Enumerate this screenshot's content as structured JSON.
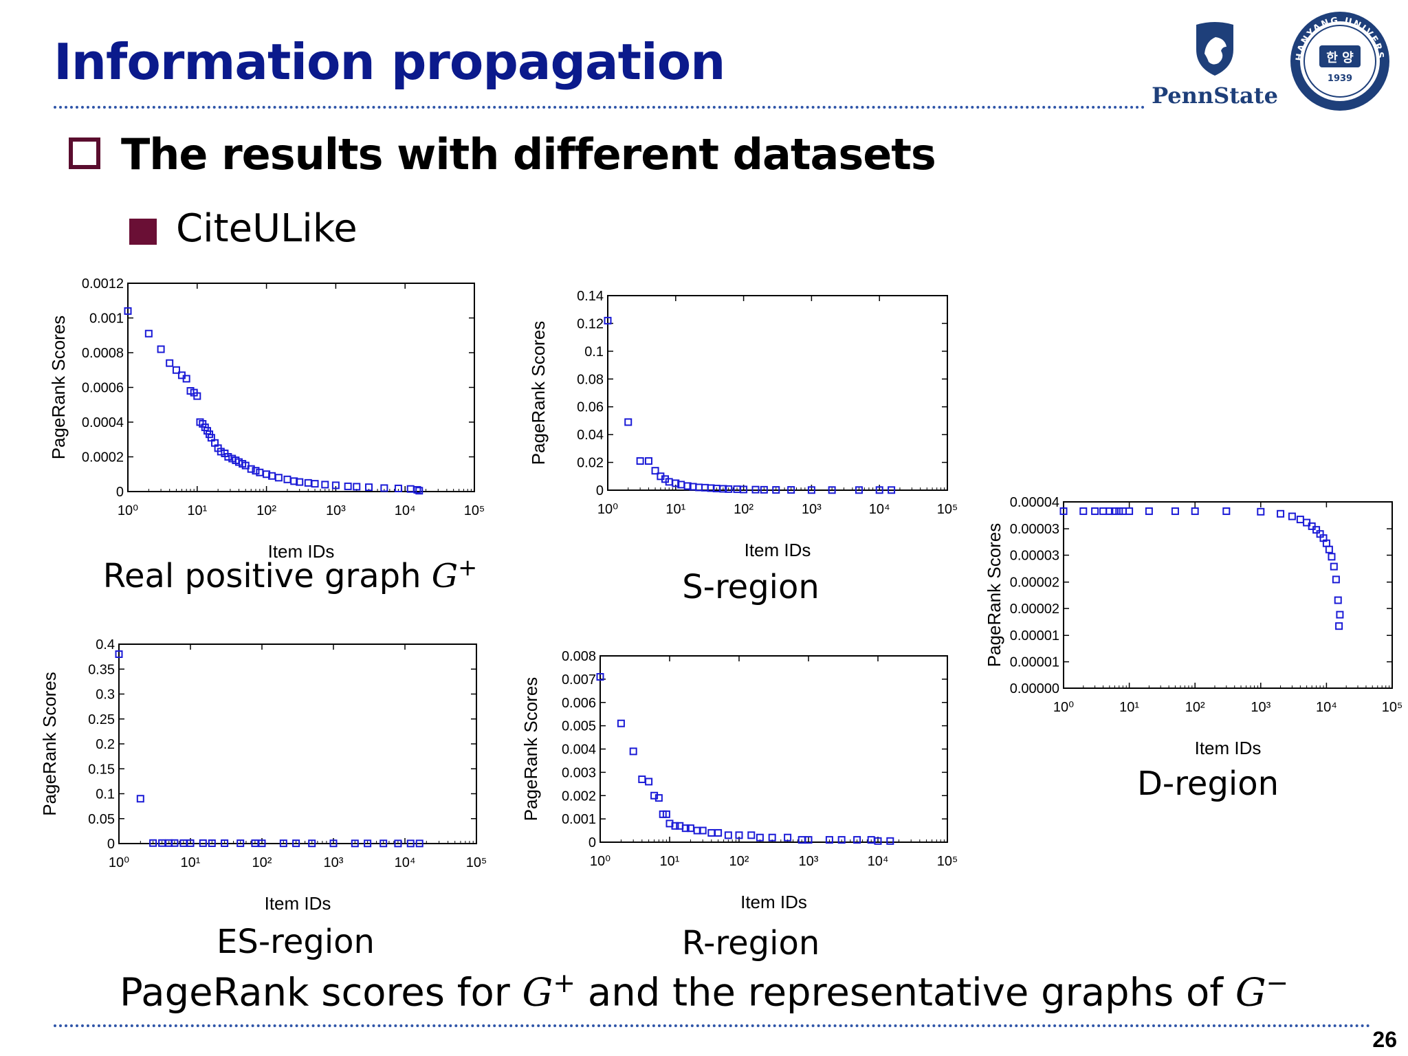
{
  "slide": {
    "title": "Information propagation",
    "bullet_level1": "The results with different datasets",
    "bullet_level2": "CiteULike",
    "bottom_caption_part1": "PageRank scores for ",
    "bottom_caption_math1": "G",
    "bottom_caption_sup1": "+",
    "bottom_caption_part2": " and the representative graphs of ",
    "bottom_caption_math2": "G",
    "bottom_caption_sup2": "−",
    "page_number": "26",
    "logos": {
      "pennstate_text": "PennState",
      "hanyang_ring_text": "HANYANG UNIVERSITY",
      "hanyang_center_text": "한 양",
      "hanyang_year": "1939"
    },
    "colors": {
      "title": "#0b1a8c",
      "bullet": "#6a0f35",
      "marker": "#1a1ad6",
      "divider": "#2f55a8"
    }
  },
  "chart_data": [
    {
      "type": "scatter",
      "caption": "Real positive graph ",
      "caption_math": "G",
      "caption_sup": "+",
      "xlabel": "Item IDs",
      "ylabel": "PageRank Scores",
      "xscale": "log",
      "xlim": [
        1,
        100000
      ],
      "xticks": [
        1,
        10,
        100,
        1000,
        10000,
        100000
      ],
      "ylim": [
        0,
        0.0012
      ],
      "yticks": [
        0,
        0.0002,
        0.0004,
        0.0006,
        0.0008,
        0.001,
        0.0012
      ],
      "ytick_labels": [
        "0",
        "0.0002",
        "0.0004",
        "0.0006",
        "0.0008",
        "0.001",
        "0.0012"
      ],
      "x": [
        1,
        2,
        3,
        4,
        5,
        6,
        7,
        8,
        9,
        10,
        11,
        12,
        13,
        14,
        15,
        16,
        18,
        20,
        22,
        25,
        28,
        32,
        36,
        40,
        45,
        50,
        60,
        70,
        80,
        100,
        120,
        150,
        200,
        250,
        300,
        400,
        500,
        700,
        1000,
        1500,
        2000,
        3000,
        5000,
        8000,
        12000,
        15000,
        16000
      ],
      "y": [
        0.00104,
        0.00091,
        0.00082,
        0.00074,
        0.0007,
        0.00067,
        0.00065,
        0.00058,
        0.00057,
        0.00055,
        0.0004,
        0.00039,
        0.00037,
        0.00035,
        0.00033,
        0.00031,
        0.00028,
        0.00025,
        0.00023,
        0.00022,
        0.0002,
        0.00019,
        0.00018,
        0.00017,
        0.00016,
        0.00015,
        0.00013,
        0.00012,
        0.00011,
        0.0001,
        9e-05,
        8e-05,
        7e-05,
        6e-05,
        5.5e-05,
        5e-05,
        4.5e-05,
        4e-05,
        3.6e-05,
        3e-05,
        2.8e-05,
        2.5e-05,
        2e-05,
        1.8e-05,
        1.5e-05,
        1e-05,
        5e-06
      ]
    },
    {
      "type": "scatter",
      "caption": "S-region",
      "xlabel": "Item IDs",
      "ylabel": "PageRank Scores",
      "xscale": "log",
      "xlim": [
        1,
        100000
      ],
      "xticks": [
        1,
        10,
        100,
        1000,
        10000,
        100000
      ],
      "ylim": [
        0,
        0.14
      ],
      "yticks": [
        0,
        0.02,
        0.04,
        0.06,
        0.08,
        0.1,
        0.12,
        0.14
      ],
      "ytick_labels": [
        "0",
        "0.02",
        "0.04",
        "0.06",
        "0.08",
        "0.1",
        "0.12",
        "0.14"
      ],
      "x": [
        1,
        2,
        3,
        4,
        5,
        6,
        7,
        8,
        10,
        12,
        15,
        18,
        22,
        27,
        33,
        40,
        50,
        60,
        80,
        100,
        150,
        200,
        300,
        500,
        1000,
        2000,
        5000,
        10000,
        15000
      ],
      "y": [
        0.122,
        0.049,
        0.021,
        0.021,
        0.014,
        0.01,
        0.008,
        0.006,
        0.005,
        0.004,
        0.003,
        0.0025,
        0.002,
        0.0018,
        0.0015,
        0.0012,
        0.001,
        0.0008,
        0.0007,
        0.0005,
        0.0004,
        0.0003,
        0.0002,
        0.0002,
        0.0001,
        0.0001,
        0.0001,
        0.0001,
        0.0001
      ]
    },
    {
      "type": "scatter",
      "caption": "ES-region",
      "xlabel": "Item IDs",
      "ylabel": "PageRank Scores",
      "xscale": "log",
      "xlim": [
        1,
        100000
      ],
      "xticks": [
        1,
        10,
        100,
        1000,
        10000,
        100000
      ],
      "ylim": [
        0,
        0.4
      ],
      "yticks": [
        0,
        0.05,
        0.1,
        0.15,
        0.2,
        0.25,
        0.3,
        0.35,
        0.4
      ],
      "ytick_labels": [
        "0",
        "0.05",
        "0.1",
        "0.15",
        "0.2",
        "0.25",
        "0.3",
        "0.35",
        "0.4"
      ],
      "x": [
        1,
        2,
        3,
        4,
        5,
        6,
        8,
        10,
        15,
        20,
        30,
        50,
        80,
        100,
        200,
        300,
        500,
        1000,
        2000,
        3000,
        5000,
        8000,
        12000,
        16000
      ],
      "y": [
        0.38,
        0.09,
        0.001,
        0.001,
        0.001,
        0.001,
        0.0008,
        0.0008,
        0.0008,
        0.0007,
        0.0007,
        0.0006,
        0.0006,
        0.0005,
        0.0005,
        0.0005,
        0.0004,
        0.0004,
        0.0003,
        0.0003,
        0.0003,
        0.0002,
        0.0002,
        0.0002
      ]
    },
    {
      "type": "scatter",
      "caption": "R-region",
      "xlabel": "Item IDs",
      "ylabel": "PageRank Scores",
      "xscale": "log",
      "xlim": [
        1,
        100000
      ],
      "xticks": [
        1,
        10,
        100,
        1000,
        10000,
        100000
      ],
      "ylim": [
        0,
        0.008
      ],
      "yticks": [
        0,
        0.001,
        0.002,
        0.003,
        0.004,
        0.005,
        0.006,
        0.007,
        0.008
      ],
      "ytick_labels": [
        "0",
        "0.001",
        "0.002",
        "0.003",
        "0.004",
        "0.005",
        "0.006",
        "0.007",
        "0.008"
      ],
      "x": [
        1,
        2,
        3,
        4,
        5,
        6,
        7,
        8,
        9,
        10,
        12,
        14,
        17,
        20,
        25,
        30,
        40,
        50,
        70,
        100,
        150,
        200,
        300,
        500,
        800,
        1000,
        2000,
        3000,
        5000,
        8000,
        10000,
        15000
      ],
      "y": [
        0.0071,
        0.0051,
        0.0039,
        0.0027,
        0.0026,
        0.002,
        0.0019,
        0.0012,
        0.0012,
        0.0008,
        0.0007,
        0.0007,
        0.0006,
        0.0006,
        0.0005,
        0.0005,
        0.0004,
        0.0004,
        0.0003,
        0.0003,
        0.0003,
        0.0002,
        0.0002,
        0.0002,
        0.0001,
        0.0001,
        0.0001,
        0.0001,
        0.0001,
        0.0001,
        5e-05,
        5e-05
      ]
    },
    {
      "type": "scatter",
      "caption": "D-region",
      "xlabel": "Item IDs",
      "ylabel": "PageRank Scores",
      "xscale": "log",
      "xlim": [
        1,
        100000
      ],
      "xticks": [
        1,
        10,
        100,
        1000,
        10000,
        100000
      ],
      "ylim": [
        0,
        3.6e-05
      ],
      "yticks": [
        0,
        5.1e-06,
        1.02e-05,
        1.54e-05,
        2.05e-05,
        2.57e-05,
        3.08e-05,
        3.6e-05
      ],
      "ytick_labels": [
        "0.00000",
        "0.00001",
        "0.00001",
        "0.00002",
        "0.00002",
        "0.00003",
        "0.00003",
        "0.00004"
      ],
      "x": [
        1,
        2,
        3,
        4,
        5,
        6,
        7,
        8,
        10,
        20,
        50,
        100,
        300,
        1000,
        2000,
        3000,
        4000,
        5000,
        6000,
        7000,
        8000,
        9000,
        10000,
        11000,
        12000,
        13000,
        14000,
        15000,
        15500,
        16000
      ],
      "y": [
        3.42e-05,
        3.42e-05,
        3.42e-05,
        3.42e-05,
        3.42e-05,
        3.42e-05,
        3.42e-05,
        3.42e-05,
        3.42e-05,
        3.42e-05,
        3.42e-05,
        3.42e-05,
        3.42e-05,
        3.41e-05,
        3.37e-05,
        3.32e-05,
        3.26e-05,
        3.2e-05,
        3.13e-05,
        3.06e-05,
        2.98e-05,
        2.9e-05,
        2.8e-05,
        2.68e-05,
        2.54e-05,
        2.35e-05,
        2.1e-05,
        1.7e-05,
        1.2e-05,
        1.42e-05
      ]
    }
  ]
}
